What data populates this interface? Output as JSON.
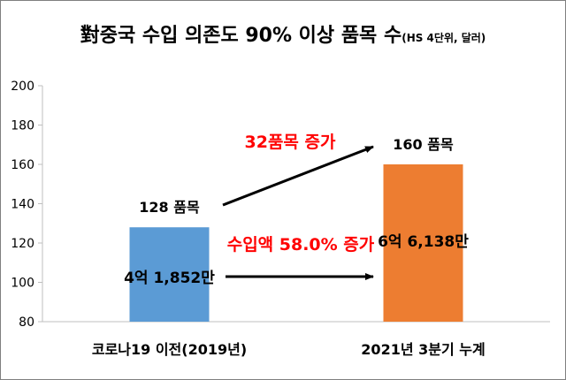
{
  "chart_data": {
    "type": "bar",
    "title": "對중국 수입 의존도 90% 이상 품목 수",
    "subtitle": "(HS 4단위, 달러)",
    "categories": [
      "코로나19 이전(2019년)",
      "2021년 3분기 누계"
    ],
    "values": [
      128,
      160
    ],
    "bar_colors": [
      "#5b9bd5",
      "#ed7d31"
    ],
    "value_labels": [
      "128 품목",
      "160 품목"
    ],
    "bar_inner_labels": [
      "4억 1,852만",
      "6억 6,138만"
    ],
    "ylim": [
      80,
      200
    ],
    "yticks": [
      80,
      100,
      120,
      140,
      160,
      180,
      200
    ],
    "grid": false,
    "xlabel": "",
    "ylabel": "",
    "annotations": [
      {
        "text": "32품목 증가",
        "color": "#ff0000"
      },
      {
        "text": "수입액 58.0% 증가",
        "color": "#ff0000"
      }
    ]
  }
}
